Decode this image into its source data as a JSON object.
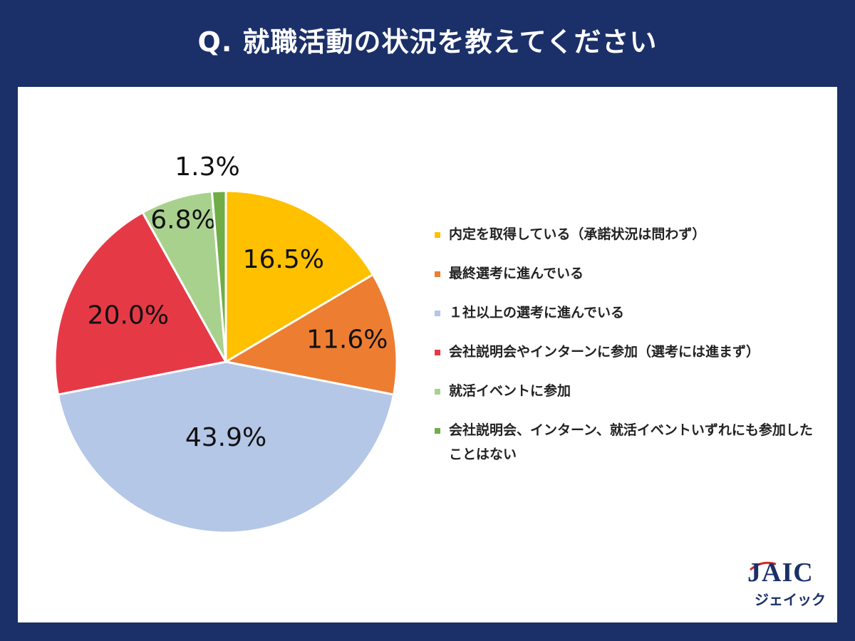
{
  "header": {
    "title": "Q.  就職活動の状況を教えてください"
  },
  "chart_data": {
    "type": "pie",
    "title": "Q.  就職活動の状況を教えてください",
    "slices": [
      {
        "label": "内定を取得している（承諾状況は問わず）",
        "value": 16.5,
        "display": "16.5%",
        "color": "#ffc000"
      },
      {
        "label": "最終選考に進んでいる",
        "value": 11.6,
        "display": "11.6%",
        "color": "#ed7d31"
      },
      {
        "label": "１社以上の選考に進んでいる",
        "value": 43.9,
        "display": "43.9%",
        "color": "#b4c7e7"
      },
      {
        "label": "会社説明会やインターンに参加（選考には進まず）",
        "value": 20.0,
        "display": "20.0%",
        "color": "#e63946"
      },
      {
        "label": "就活イベントに参加",
        "value": 6.8,
        "display": "6.8%",
        "color": "#a9d18e"
      },
      {
        "label": "会社説明会、インターン、就活イベントいずれにも参加したことはない",
        "value": 1.3,
        "display": "1.3%",
        "color": "#70ad47"
      }
    ],
    "legend_position": "right"
  },
  "logo": {
    "main": "JAIC",
    "sub": "ジェイック"
  }
}
